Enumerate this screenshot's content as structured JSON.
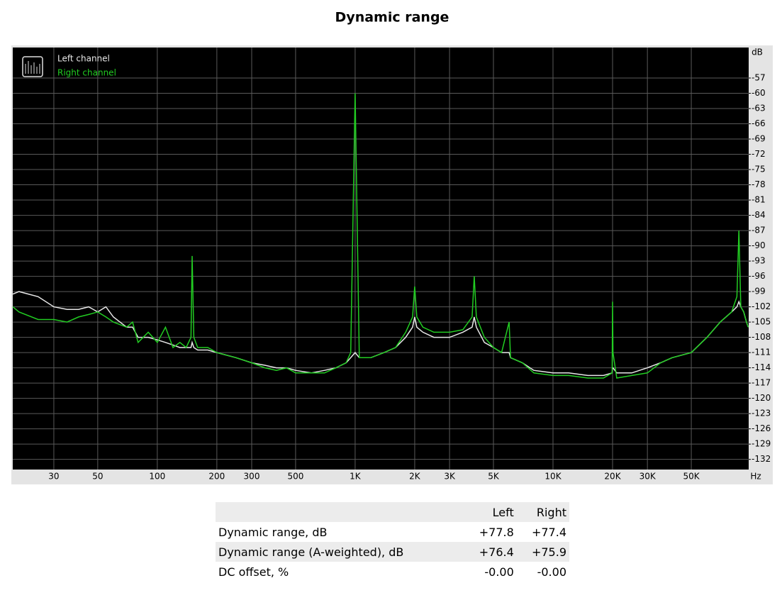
{
  "chart_data": {
    "type": "line",
    "title": "Dynamic range",
    "x_label": "Hz",
    "y_label": "dB",
    "x_scale": "log",
    "grid": true,
    "legend": "top-left",
    "xlim": [
      18.6,
      97500
    ],
    "ylim": [
      -134,
      -51
    ],
    "xticks": [
      30,
      50,
      100,
      200,
      300,
      500,
      {
        "value": 1000,
        "label": "1K"
      },
      {
        "value": 2000,
        "label": "2K"
      },
      {
        "value": 3000,
        "label": "3K"
      },
      {
        "value": 5000,
        "label": "5K"
      },
      {
        "value": 10000,
        "label": "10K"
      },
      {
        "value": 20000,
        "label": "20K"
      },
      {
        "value": 30000,
        "label": "30K"
      },
      {
        "value": 50000,
        "label": "50K"
      }
    ],
    "yticks": [
      -57,
      -60,
      -63,
      -66,
      -69,
      -72,
      -75,
      -78,
      -81,
      -84,
      -87,
      -90,
      -93,
      -96,
      -99,
      -102,
      -105,
      -108,
      -111,
      -114,
      -117,
      -120,
      -123,
      -126,
      -129,
      -132
    ],
    "x": [
      18.6,
      20,
      25,
      30,
      35,
      40,
      45,
      50,
      55,
      60,
      70,
      75,
      80,
      90,
      100,
      110,
      120,
      130,
      140,
      148,
      150,
      153,
      160,
      180,
      200,
      250,
      300,
      350,
      400,
      450,
      500,
      600,
      700,
      800,
      900,
      950,
      1000,
      1050,
      1200,
      1400,
      1600,
      1800,
      1950,
      2000,
      2050,
      2200,
      2500,
      3000,
      3500,
      3900,
      4000,
      4100,
      4500,
      5000,
      5500,
      6000,
      6100,
      7000,
      8000,
      10000,
      12000,
      15000,
      18000,
      19900,
      20000,
      20100,
      21000,
      25000,
      30000,
      35000,
      40000,
      50000,
      60000,
      70000,
      80000,
      85000,
      87000,
      89000,
      92000,
      95000,
      97000
    ],
    "series": [
      {
        "name": "Left channel",
        "color": "#e8e8e8",
        "values": [
          -99.5,
          -99,
          -100,
          -102,
          -102.5,
          -102.5,
          -102,
          -103,
          -102,
          -104,
          -106,
          -106,
          -108,
          -108,
          -108.5,
          -109,
          -109.5,
          -110,
          -110,
          -110,
          -109,
          -110,
          -110.5,
          -110.5,
          -111,
          -112,
          -113,
          -113.5,
          -114,
          -114,
          -114.5,
          -115,
          -114.5,
          -114,
          -113,
          -112,
          -111,
          -112,
          -112,
          -111,
          -110,
          -108,
          -106,
          -104,
          -106,
          -107,
          -108,
          -108,
          -107,
          -106,
          -104,
          -106,
          -109,
          -110,
          -111,
          -111,
          -112,
          -113,
          -114.5,
          -115,
          -115,
          -115.5,
          -115.5,
          -115,
          -114,
          -114,
          -115,
          -115,
          -114,
          -113,
          -112,
          -111,
          -108,
          -105,
          -103,
          -102,
          -101,
          -102,
          -103,
          -105,
          -106
        ]
      },
      {
        "name": "Right channel",
        "color": "#22cc22",
        "values": [
          -102,
          -103,
          -104.5,
          -104.5,
          -105,
          -104,
          -103.5,
          -103,
          -104,
          -105,
          -106,
          -105,
          -109,
          -107,
          -109,
          -106,
          -110,
          -109,
          -110,
          -108,
          -92,
          -108,
          -110,
          -110,
          -111,
          -112,
          -113,
          -114,
          -114.5,
          -114,
          -115,
          -115,
          -115,
          -114,
          -113,
          -111,
          -60,
          -112,
          -112,
          -111,
          -110,
          -107,
          -104,
          -98,
          -104,
          -106,
          -107,
          -107,
          -106.5,
          -104,
          -96,
          -104,
          -108,
          -110,
          -111,
          -105,
          -112,
          -113,
          -115,
          -115.5,
          -115.5,
          -116,
          -116,
          -115,
          -101,
          -111,
          -116,
          -115.5,
          -115,
          -113,
          -112,
          -111,
          -108,
          -105,
          -103,
          -100,
          -87,
          -102,
          -103,
          -105,
          -106
        ]
      }
    ]
  },
  "table": {
    "header": [
      "Left",
      "Right"
    ],
    "rows": [
      [
        "Dynamic range, dB",
        "+77.8",
        "+77.4"
      ],
      [
        "Dynamic range (A-weighted), dB",
        "+76.4",
        "+75.9"
      ],
      [
        "DC offset, %",
        "-0.00",
        "-0.00"
      ]
    ]
  }
}
